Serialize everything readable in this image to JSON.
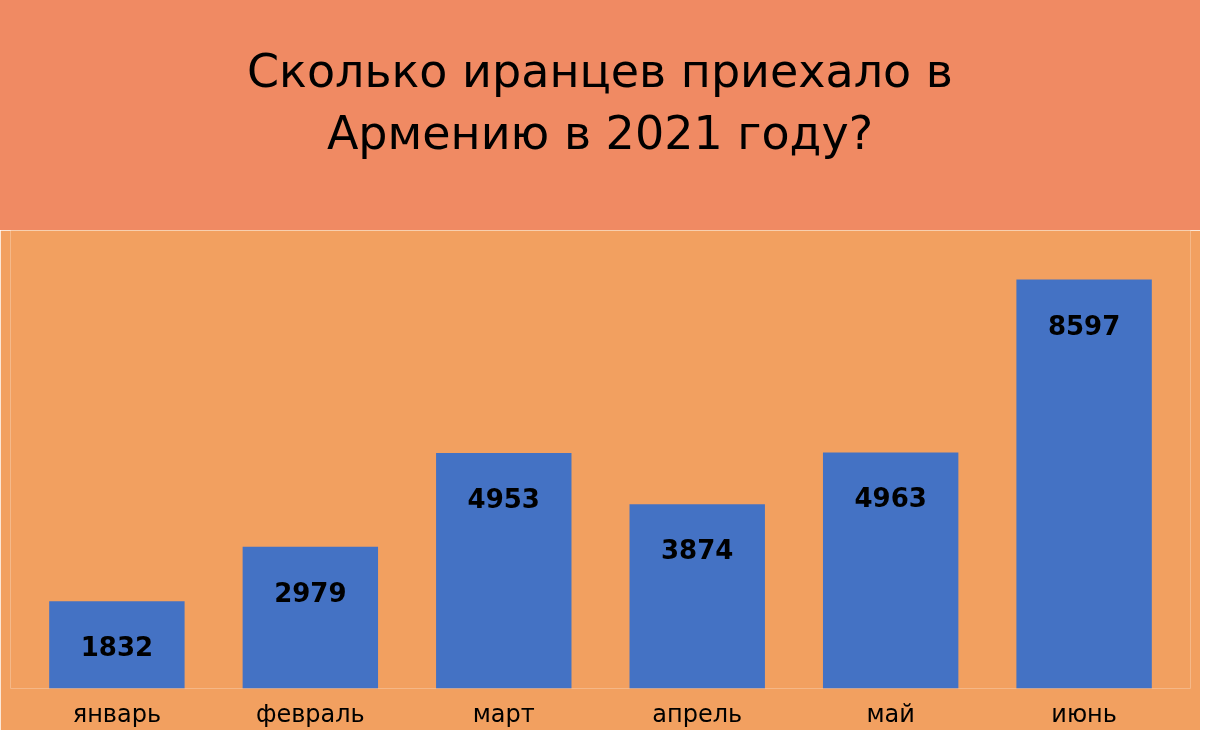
{
  "chart_data": {
    "type": "bar",
    "title": "Сколько иранцев приехало в Армению в 2021 году?",
    "categories": [
      "январь",
      "февраль",
      "март",
      "апрель",
      "май",
      "июнь"
    ],
    "values": [
      1832,
      2979,
      4953,
      3874,
      4963,
      8597
    ],
    "color": "#4472c4",
    "data_labels": true,
    "grid": false
  }
}
